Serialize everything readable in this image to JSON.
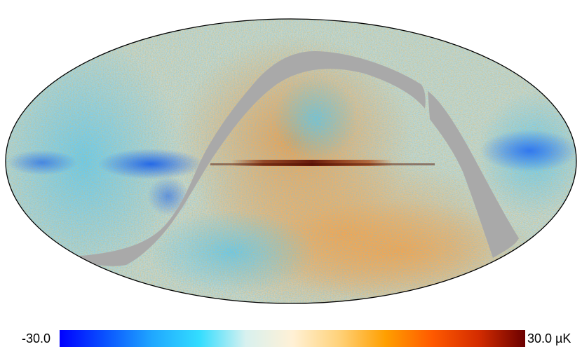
{
  "colormap": {
    "stops": [
      "#0000ff",
      "#0a54ff",
      "#20a8ff",
      "#33ddff",
      "#d8f1ef",
      "#fff1d6",
      "#ffd27a",
      "#ff9f00",
      "#ff5a00",
      "#d42c00",
      "#6b0000"
    ],
    "min_label": "-30.0",
    "max_label": "30.0 µK",
    "min_value": -30.0,
    "max_value": 30.0,
    "unit": "µK"
  },
  "map": {
    "projection": "mollweide",
    "mask_color": "#a9a9a9",
    "outline_color": "#000000"
  }
}
